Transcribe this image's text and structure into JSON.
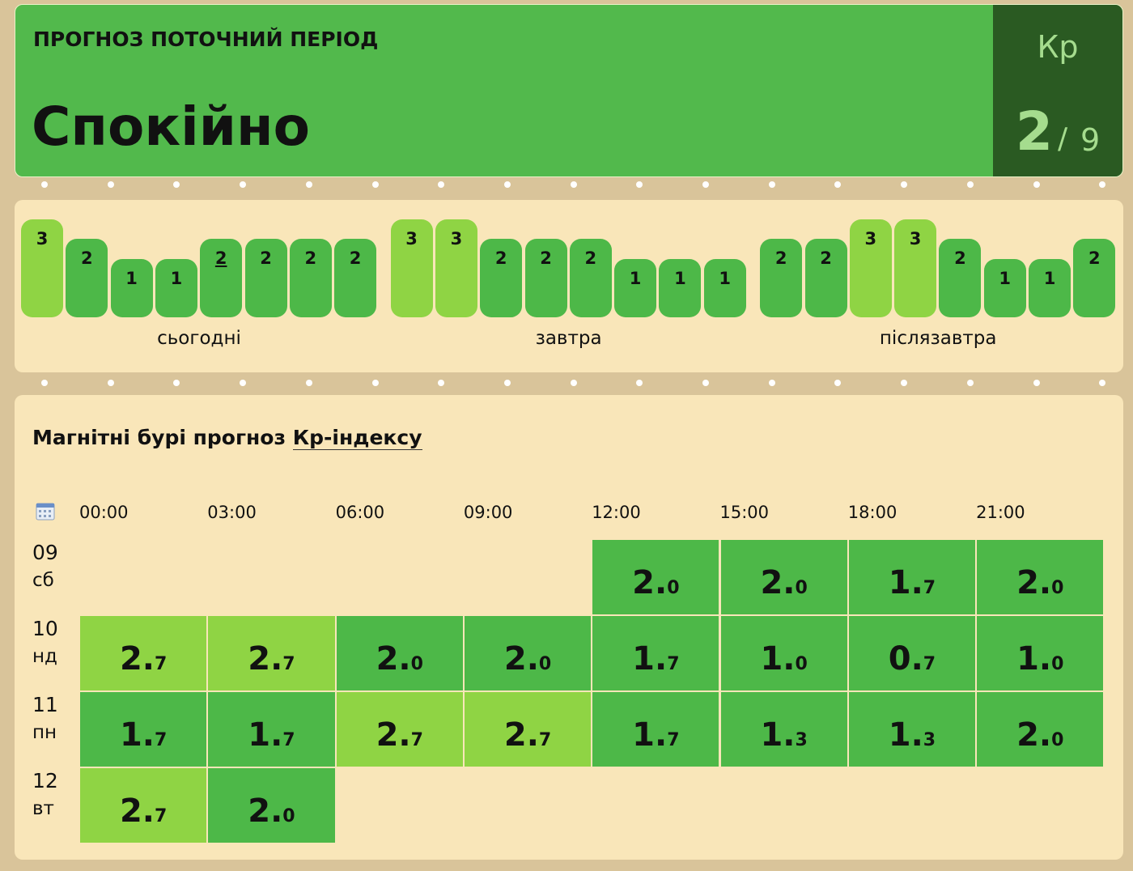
{
  "header": {
    "label": "ПРОГНОЗ ПОТОЧНИЙ ПЕРІОД",
    "status": "Спокійно",
    "index_name": "Кр",
    "index_value": 2,
    "separator": "/",
    "index_max": 9
  },
  "forecast": {
    "current": {
      "day": 0,
      "slot": 4
    },
    "days": [
      {
        "label": "сьогодні",
        "values": [
          3,
          2,
          1,
          1,
          2,
          2,
          2,
          2
        ]
      },
      {
        "label": "завтра",
        "values": [
          3,
          3,
          2,
          2,
          2,
          1,
          1,
          1
        ]
      },
      {
        "label": "післязавтра",
        "values": [
          2,
          2,
          3,
          3,
          2,
          1,
          1,
          2
        ]
      }
    ]
  },
  "table": {
    "title": "Магнітні бурі прогноз",
    "title_link": "Кр-індексу",
    "hours": [
      "00:00",
      "03:00",
      "06:00",
      "09:00",
      "12:00",
      "15:00",
      "18:00",
      "21:00"
    ],
    "rows": [
      {
        "date": "09",
        "weekday": "сб",
        "cells": [
          null,
          null,
          null,
          null,
          "2.0",
          "2.0",
          "1.7",
          "2.0"
        ]
      },
      {
        "date": "10",
        "weekday": "нд",
        "cells": [
          "2.7",
          "2.7",
          "2.0",
          "2.0",
          "1.7",
          "1.0",
          "0.7",
          "1.0"
        ]
      },
      {
        "date": "11",
        "weekday": "пн",
        "cells": [
          "1.7",
          "1.7",
          "2.7",
          "2.7",
          "1.7",
          "1.3",
          "1.3",
          "2.0"
        ]
      },
      {
        "date": "12",
        "weekday": "вт",
        "cells": [
          "2.7",
          "2.0",
          null,
          null,
          null,
          null,
          null,
          null
        ]
      }
    ]
  }
}
